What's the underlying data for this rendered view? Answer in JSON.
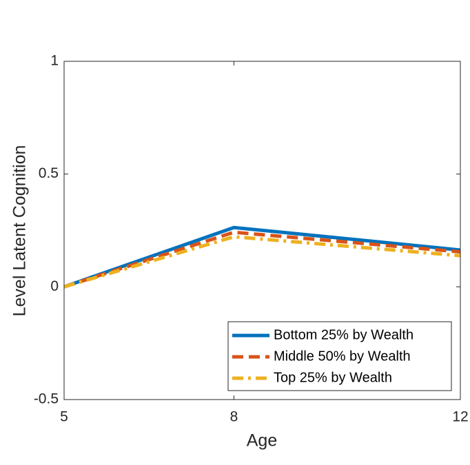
{
  "chart_data": {
    "type": "line",
    "xlabel": "Age",
    "ylabel": "Level Latent Cognition",
    "x": [
      5,
      8,
      12
    ],
    "series": [
      {
        "name": "Bottom 25% by Wealth",
        "color": "#0072bd",
        "dash": "solid",
        "values": [
          0,
          0.263,
          0.163
        ]
      },
      {
        "name": "Middle 50% by Wealth",
        "color": "#d95319",
        "dash": "dashed",
        "values": [
          0,
          0.242,
          0.155
        ]
      },
      {
        "name": "Top 25% by Wealth",
        "color": "#edb120",
        "dash": "dashdot",
        "values": [
          0,
          0.222,
          0.138
        ]
      }
    ],
    "xlim": [
      5,
      12
    ],
    "xticks": [
      5,
      8,
      12
    ],
    "ylim": [
      -0.5,
      1
    ],
    "yticks": [
      -0.5,
      0,
      0.5,
      1
    ],
    "grid": false,
    "legend": "southeast"
  }
}
